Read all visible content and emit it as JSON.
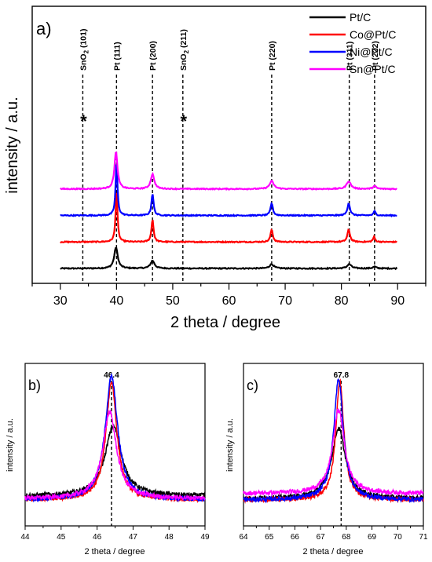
{
  "chart_data": [
    {
      "type": "line",
      "panel_label": "a)",
      "xlabel": "2 theta / degree",
      "ylabel": "intensity / a.u.",
      "xlim": [
        25,
        95
      ],
      "x_ticks": [
        30,
        40,
        50,
        60,
        70,
        80,
        90
      ],
      "y_ticks_shown": false,
      "legend_position": "top-right",
      "series": [
        {
          "name": "Pt/C",
          "color": "#000000",
          "offset": 0.0,
          "peaks": [
            [
              39.9,
              0.6,
              0.75
            ],
            [
              46.4,
              0.22,
              0.85
            ],
            [
              67.6,
              0.12,
              0.9
            ],
            [
              81.4,
              0.12,
              0.9
            ],
            [
              85.9,
              0.05,
              0.7
            ]
          ]
        },
        {
          "name": "Co@Pt/C",
          "color": "#ff0000",
          "offset": 0.75,
          "peaks": [
            [
              40.0,
              1.45,
              0.4
            ],
            [
              46.4,
              0.64,
              0.45
            ],
            [
              67.6,
              0.35,
              0.5
            ],
            [
              81.3,
              0.35,
              0.55
            ],
            [
              85.8,
              0.14,
              0.45
            ]
          ]
        },
        {
          "name": "Ni@Pt/C",
          "color": "#0000ff",
          "offset": 1.5,
          "peaks": [
            [
              40.0,
              1.5,
              0.4
            ],
            [
              46.4,
              0.62,
              0.45
            ],
            [
              67.6,
              0.35,
              0.5
            ],
            [
              81.3,
              0.35,
              0.55
            ],
            [
              85.9,
              0.12,
              0.45
            ]
          ]
        },
        {
          "name": "Sn@Pt/C",
          "color": "#ff00ff",
          "offset": 2.25,
          "peaks": [
            [
              39.9,
              1.05,
              0.65
            ],
            [
              46.4,
              0.42,
              0.75
            ],
            [
              67.6,
              0.22,
              0.9
            ],
            [
              81.3,
              0.22,
              0.9
            ],
            [
              85.9,
              0.08,
              0.7
            ]
          ]
        }
      ],
      "reference_lines": [
        {
          "x": 34.0,
          "label_main": "SnO",
          "label_sub": "2",
          "label_rest": " (101)",
          "star": true
        },
        {
          "x": 40.0,
          "label_main": "Pt (111)",
          "label_sub": "",
          "label_rest": "",
          "star": false
        },
        {
          "x": 46.4,
          "label_main": "Pt (200)",
          "label_sub": "",
          "label_rest": "",
          "star": false
        },
        {
          "x": 51.8,
          "label_main": "SnO",
          "label_sub": "2",
          "label_rest": " (211)",
          "star": true
        },
        {
          "x": 67.6,
          "label_main": "Pt (220)",
          "label_sub": "",
          "label_rest": "",
          "star": false
        },
        {
          "x": 81.4,
          "label_main": "Pt (311)",
          "label_sub": "",
          "label_rest": "",
          "star": false
        },
        {
          "x": 85.9,
          "label_main": "Pt (222)",
          "label_sub": "",
          "label_rest": "",
          "star": false
        }
      ],
      "star_symbol": "*"
    },
    {
      "type": "line",
      "panel_label": "b)",
      "xlabel": "2 theta / degree",
      "ylabel": "intensity / a.u.",
      "xlim": [
        44,
        49
      ],
      "x_ticks": [
        44,
        45,
        46,
        47,
        48,
        49
      ],
      "y_ticks_shown": false,
      "peak_marker": {
        "x": 46.4,
        "label": "46.4"
      },
      "series": [
        {
          "name": "Pt/C",
          "color": "#000000",
          "center": 46.45,
          "height": 0.55,
          "width": 0.55,
          "base": 0.08
        },
        {
          "name": "Co@Pt/C",
          "color": "#ff0000",
          "center": 46.4,
          "height": 0.93,
          "width": 0.36,
          "base": 0.05
        },
        {
          "name": "Ni@Pt/C",
          "color": "#0000ff",
          "center": 46.4,
          "height": 0.97,
          "width": 0.42,
          "base": 0.05
        },
        {
          "name": "Sn@Pt/C",
          "color": "#ff00ff",
          "center": 46.35,
          "height": 0.68,
          "width": 0.46,
          "base": 0.06
        }
      ]
    },
    {
      "type": "line",
      "panel_label": "c)",
      "xlabel": "2 theta / degree",
      "ylabel": "intensity / a.u.",
      "xlim": [
        64,
        71
      ],
      "x_ticks": [
        64,
        65,
        66,
        67,
        68,
        69,
        70,
        71
      ],
      "y_ticks_shown": false,
      "peak_marker": {
        "x": 67.8,
        "label": "67.8"
      },
      "series": [
        {
          "name": "Pt/C",
          "color": "#000000",
          "center": 67.7,
          "height": 0.55,
          "width": 0.65,
          "base": 0.06
        },
        {
          "name": "Co@Pt/C",
          "color": "#ff0000",
          "center": 67.75,
          "height": 0.93,
          "width": 0.38,
          "base": 0.05
        },
        {
          "name": "Ni@Pt/C",
          "color": "#0000ff",
          "center": 67.7,
          "height": 0.95,
          "width": 0.45,
          "base": 0.05
        },
        {
          "name": "Sn@Pt/C",
          "color": "#ff00ff",
          "center": 67.7,
          "height": 0.66,
          "width": 0.55,
          "base": 0.1
        }
      ]
    }
  ]
}
